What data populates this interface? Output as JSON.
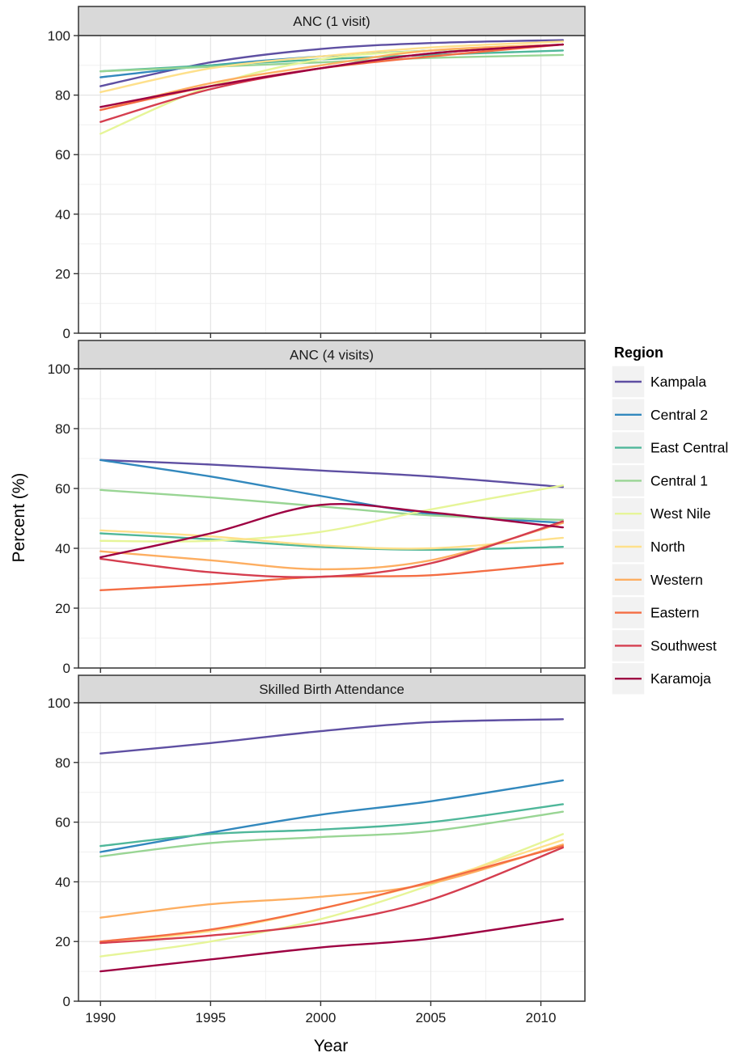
{
  "chart_data": {
    "type": "line",
    "xlabel": "Year",
    "ylabel": "Percent (%)",
    "xlim": [
      1989,
      2012
    ],
    "ylim": [
      0,
      100
    ],
    "x_ticks": [
      1990,
      1995,
      2000,
      2005,
      2010
    ],
    "y_ticks": [
      0,
      20,
      40,
      60,
      80,
      100
    ],
    "grid": true,
    "legend": {
      "title": "Region",
      "position": "right"
    },
    "x": [
      1990,
      1995,
      2000,
      2005,
      2011
    ],
    "regions": [
      {
        "name": "Kampala",
        "color": "#5e4fa2"
      },
      {
        "name": "Central 2",
        "color": "#3288bd"
      },
      {
        "name": "East Central",
        "color": "#4fb79a"
      },
      {
        "name": "Central 1",
        "color": "#99d594"
      },
      {
        "name": "West Nile",
        "color": "#e6f598"
      },
      {
        "name": "North",
        "color": "#fee08b"
      },
      {
        "name": "Western",
        "color": "#fdae61"
      },
      {
        "name": "Eastern",
        "color": "#f46d43"
      },
      {
        "name": "Southwest",
        "color": "#d53e4f"
      },
      {
        "name": "Karamoja",
        "color": "#9e0142"
      }
    ],
    "panels": [
      {
        "title": "ANC (1 visit)",
        "series": [
          {
            "name": "Kampala",
            "values": [
              83,
              91,
              95.5,
              97.5,
              98.5
            ]
          },
          {
            "name": "Central 2",
            "values": [
              86,
              90,
              93,
              95,
              97
            ]
          },
          {
            "name": "East Central",
            "values": [
              88,
              90,
              92,
              93.5,
              95
            ]
          },
          {
            "name": "Central 1",
            "values": [
              88,
              89.5,
              91,
              92.5,
              93.5
            ]
          },
          {
            "name": "West Nile",
            "values": [
              67,
              83,
              92,
              95,
              97
            ]
          },
          {
            "name": "North",
            "values": [
              81,
              89,
              93,
              96,
              98
            ]
          },
          {
            "name": "Western",
            "values": [
              75,
              84,
              90,
              95,
              97
            ]
          },
          {
            "name": "Eastern",
            "values": [
              75,
              83,
              89,
              93,
              97
            ]
          },
          {
            "name": "Southwest",
            "values": [
              71,
              82,
              89,
              94,
              97
            ]
          },
          {
            "name": "Karamoja",
            "values": [
              76,
              83,
              89,
              94,
              97
            ]
          }
        ]
      },
      {
        "title": "ANC (4 visits)",
        "series": [
          {
            "name": "Kampala",
            "values": [
              69.5,
              68,
              66,
              64,
              60.5
            ]
          },
          {
            "name": "Central 2",
            "values": [
              69.5,
              64,
              57.5,
              51.5,
              48.5
            ]
          },
          {
            "name": "East Central",
            "values": [
              45,
              43,
              40.5,
              39.5,
              40.5
            ]
          },
          {
            "name": "Central 1",
            "values": [
              59.5,
              57,
              54,
              51,
              49.5
            ]
          },
          {
            "name": "West Nile",
            "values": [
              42.5,
              42.5,
              45.5,
              53,
              61
            ]
          },
          {
            "name": "North",
            "values": [
              46,
              44,
              41,
              40,
              43.5
            ]
          },
          {
            "name": "Western",
            "values": [
              39,
              36,
              33,
              36,
              48.5
            ]
          },
          {
            "name": "Eastern",
            "values": [
              26,
              28,
              30.5,
              31,
              35
            ]
          },
          {
            "name": "Southwest",
            "values": [
              36.5,
              32,
              30.5,
              35,
              49
            ]
          },
          {
            "name": "Karamoja",
            "values": [
              37,
              45,
              54.5,
              52,
              47
            ]
          }
        ]
      },
      {
        "title": "Skilled Birth Attendance",
        "series": [
          {
            "name": "Kampala",
            "values": [
              83,
              86.5,
              90.5,
              93.5,
              94.5
            ]
          },
          {
            "name": "Central 2",
            "values": [
              50,
              56.5,
              62.5,
              67,
              74
            ]
          },
          {
            "name": "East Central",
            "values": [
              52,
              56,
              57.5,
              60,
              66
            ]
          },
          {
            "name": "Central 1",
            "values": [
              48.5,
              53,
              55,
              57,
              63.5
            ]
          },
          {
            "name": "West Nile",
            "values": [
              15,
              20,
              27.5,
              39,
              56
            ]
          },
          {
            "name": "North",
            "values": [
              19.5,
              23.5,
              31,
              40,
              54
            ]
          },
          {
            "name": "Western",
            "values": [
              28,
              32.5,
              35,
              39.5,
              52.5
            ]
          },
          {
            "name": "Eastern",
            "values": [
              20,
              24,
              31,
              40,
              52
            ]
          },
          {
            "name": "Southwest",
            "values": [
              19.5,
              22,
              26,
              34,
              51.5
            ]
          },
          {
            "name": "Karamoja",
            "values": [
              10,
              14,
              18,
              21,
              27.5
            ]
          }
        ]
      }
    ]
  }
}
